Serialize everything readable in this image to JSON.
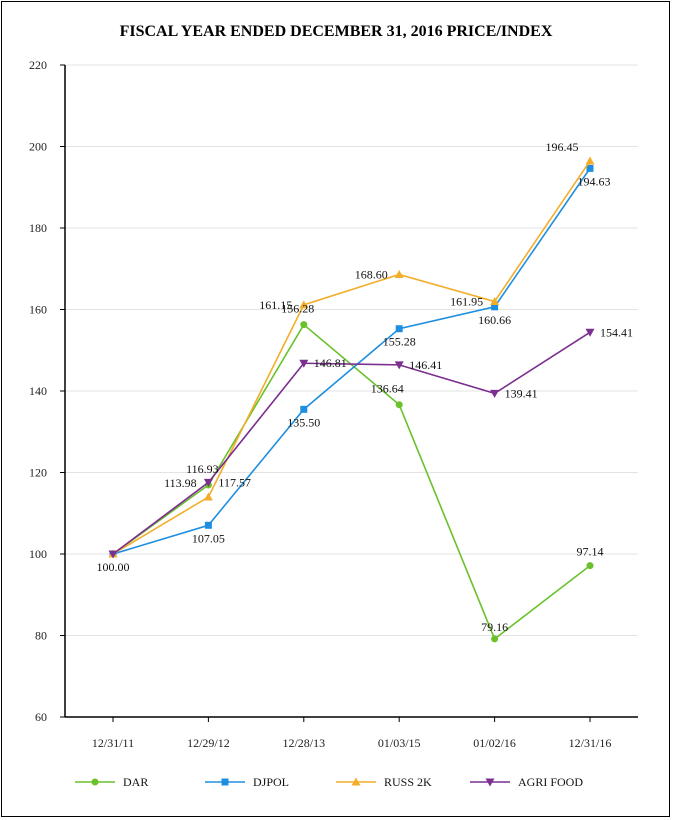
{
  "chart_data": {
    "type": "line",
    "title": "FISCAL YEAR ENDED DECEMBER 31, 2016 PRICE/INDEX",
    "xlabel": "",
    "ylabel": "",
    "categories": [
      "12/31/11",
      "12/29/12",
      "12/28/13",
      "01/03/15",
      "01/02/16",
      "12/31/16"
    ],
    "ylim": [
      60,
      220
    ],
    "yticks": [
      60,
      80,
      100,
      120,
      140,
      160,
      180,
      200,
      220
    ],
    "grid": true,
    "legend_position": "bottom",
    "series": [
      {
        "name": "DAR",
        "color": "#6ac12b",
        "marker": "circle",
        "values": [
          100.0,
          116.93,
          156.28,
          136.64,
          79.16,
          97.14
        ],
        "labels": [
          "",
          "116.93",
          "156.28",
          "136.64",
          "79.16",
          "97.14"
        ]
      },
      {
        "name": "DJPOL",
        "color": "#1e8fe0",
        "marker": "square",
        "values": [
          100.0,
          107.05,
          135.5,
          155.28,
          160.66,
          194.63
        ],
        "labels": [
          "100.00",
          "107.05",
          "135.50",
          "155.28",
          "160.66",
          "194.63"
        ]
      },
      {
        "name": "RUSS 2K",
        "color": "#f2ae2a",
        "marker": "triangle-up",
        "values": [
          100.0,
          113.98,
          161.15,
          168.6,
          161.95,
          196.45
        ],
        "labels": [
          "",
          "113.98",
          "161.15",
          "168.60",
          "161.95",
          "196.45"
        ]
      },
      {
        "name": "AGRI FOOD",
        "color": "#7b2f8e",
        "marker": "triangle-down",
        "values": [
          100.0,
          117.57,
          146.81,
          146.41,
          139.41,
          154.41
        ],
        "labels": [
          "",
          "117.57",
          "146.81",
          "146.41",
          "139.41",
          "154.41"
        ]
      }
    ]
  }
}
